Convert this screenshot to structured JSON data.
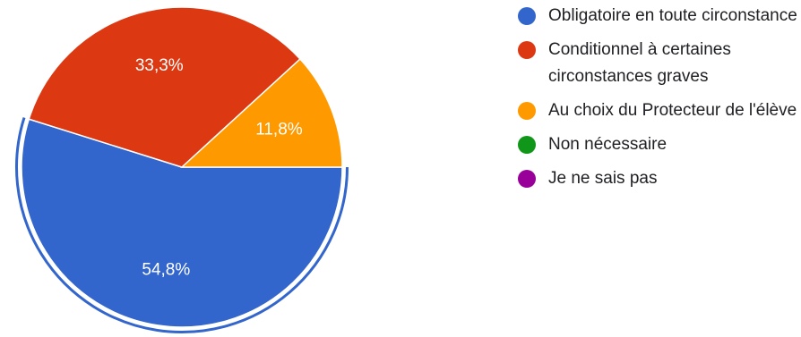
{
  "chart_data": {
    "type": "pie",
    "slices": [
      {
        "label": "Obligatoire en toute circonstance",
        "value": 54.8,
        "display": "54,8%",
        "color": "#3366cc",
        "highlighted": true
      },
      {
        "label": "Conditionnel à certaines circonstances graves",
        "value": 33.3,
        "display": "33,3%",
        "color": "#dc3912"
      },
      {
        "label": "Au choix du Protecteur de l'élève",
        "value": 11.8,
        "display": "11,8%",
        "color": "#ff9900"
      },
      {
        "label": "Non nécessaire",
        "value": 0,
        "display": "",
        "color": "#109618"
      },
      {
        "label": "Je ne sais pas",
        "value": 0,
        "display": "",
        "color": "#990099"
      }
    ],
    "start_direction": "3 o'clock",
    "orientation": "clockwise",
    "legend_position": "right"
  },
  "legend": {
    "items": [
      {
        "label": "Obligatoire en toute circonstance",
        "color": "#3366cc"
      },
      {
        "label": "Conditionnel à certaines circonstances graves",
        "color": "#dc3912"
      },
      {
        "label": "Au choix du Protecteur de l'élève",
        "color": "#ff9900"
      },
      {
        "label": "Non nécessaire",
        "color": "#109618"
      },
      {
        "label": "Je ne sais pas",
        "color": "#990099"
      }
    ]
  }
}
